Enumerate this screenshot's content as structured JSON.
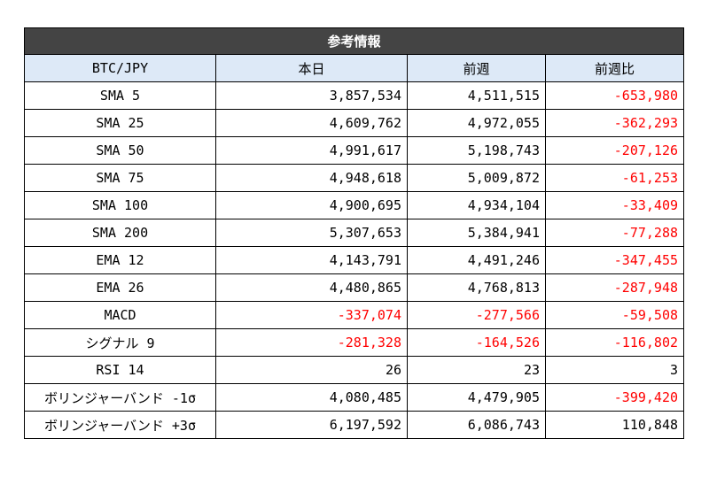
{
  "table": {
    "title": "参考情報",
    "headers": [
      "BTC/JPY",
      "本日",
      "前週",
      "前週比"
    ],
    "rows": [
      {
        "label": "SMA   5",
        "today": "3,857,534",
        "last_week": "4,511,515",
        "change": "-653,980"
      },
      {
        "label": "SMA  25",
        "today": "4,609,762",
        "last_week": "4,972,055",
        "change": "-362,293"
      },
      {
        "label": "SMA  50",
        "today": "4,991,617",
        "last_week": "5,198,743",
        "change": "-207,126"
      },
      {
        "label": "SMA  75",
        "today": "4,948,618",
        "last_week": "5,009,872",
        "change": "-61,253"
      },
      {
        "label": "SMA 100",
        "today": "4,900,695",
        "last_week": "4,934,104",
        "change": "-33,409"
      },
      {
        "label": "SMA 200",
        "today": "5,307,653",
        "last_week": "5,384,941",
        "change": "-77,288"
      },
      {
        "label": "EMA 12",
        "today": "4,143,791",
        "last_week": "4,491,246",
        "change": "-347,455"
      },
      {
        "label": "EMA 26",
        "today": "4,480,865",
        "last_week": "4,768,813",
        "change": "-287,948"
      },
      {
        "label": "MACD",
        "today": "-337,074",
        "last_week": "-277,566",
        "change": "-59,508"
      },
      {
        "label": "シグナル 9",
        "today": "-281,328",
        "last_week": "-164,526",
        "change": "-116,802"
      },
      {
        "label": "RSI 14",
        "today": "26",
        "last_week": "23",
        "change": "3"
      },
      {
        "label": "ボリンジャーバンド -1σ",
        "today": "4,080,485",
        "last_week": "4,479,905",
        "change": "-399,420"
      },
      {
        "label": "ボリンジャーバンド +3σ",
        "today": "6,197,592",
        "last_week": "6,086,743",
        "change": "110,848"
      }
    ]
  },
  "colors": {
    "title_bg": "#444444",
    "header_bg": "#dde9f7",
    "negative": "#ff0000",
    "border": "#000000"
  }
}
